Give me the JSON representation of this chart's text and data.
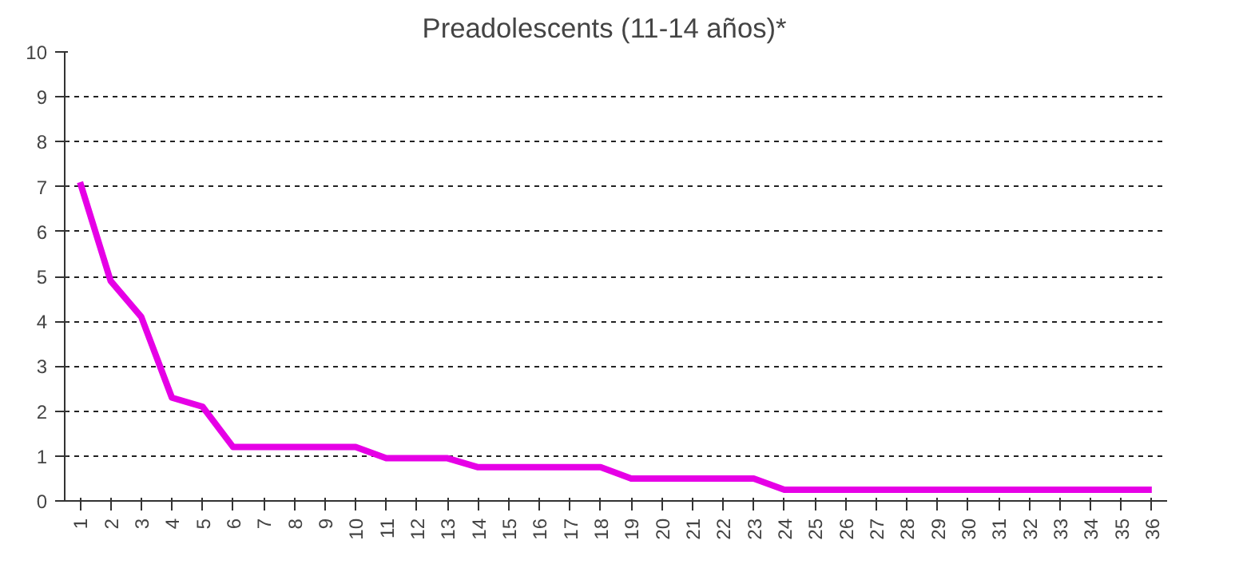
{
  "chart_data": {
    "type": "line",
    "title": "Preadolescents    (11-14 años)*",
    "categories": [
      "1",
      "2",
      "3",
      "4",
      "5",
      "6",
      "7",
      "8",
      "9",
      "10",
      "11",
      "12",
      "13",
      "14",
      "15",
      "16",
      "17",
      "18",
      "19",
      "20",
      "21",
      "22",
      "23",
      "24",
      "25",
      "26",
      "27",
      "28",
      "29",
      "30",
      "31",
      "32",
      "33",
      "34",
      "35",
      "36"
    ],
    "series": [
      {
        "color": "#e600e6",
        "values": [
          7.1,
          4.9,
          4.1,
          2.3,
          2.1,
          1.2,
          1.2,
          1.2,
          1.2,
          1.2,
          0.95,
          0.95,
          0.95,
          0.75,
          0.75,
          0.75,
          0.75,
          0.75,
          0.5,
          0.5,
          0.5,
          0.5,
          0.5,
          0.25,
          0.25,
          0.25,
          0.25,
          0.25,
          0.25,
          0.25,
          0.25,
          0.25,
          0.25,
          0.25,
          0.25,
          0.25
        ]
      }
    ],
    "ylim": [
      0,
      10
    ],
    "yticks": [
      0,
      1,
      2,
      3,
      4,
      5,
      6,
      7,
      8,
      9,
      10
    ],
    "grid": "y",
    "line_style": "solid"
  }
}
